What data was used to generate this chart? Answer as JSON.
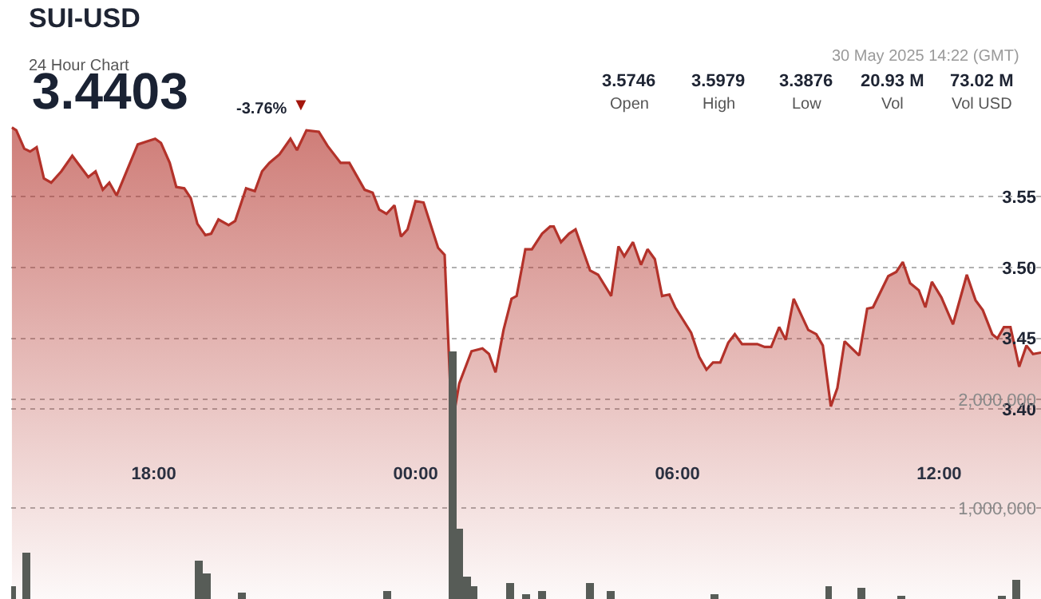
{
  "chart_data": {
    "type": "area",
    "title": "SUI-USD",
    "subtitle": "24 Hour Chart",
    "annotations": [
      "3.4403",
      "-3.76%",
      "▼",
      "30 May 2025 14:22 (GMT)",
      "3.5746",
      "Open",
      "3.5979",
      "High",
      "3.3876",
      "Low",
      "20.93 M",
      "Vol",
      "73.02 M",
      "Vol USD"
    ],
    "xlim": [
      "2025-05-29T14:44",
      "2025-05-30T14:20"
    ],
    "xticks": [
      {
        "value": "2025-05-29T18:00",
        "label": "18:00"
      },
      {
        "value": "2025-05-30T00:00",
        "label": "00:00"
      },
      {
        "value": "2025-05-30T06:00",
        "label": "06:00"
      },
      {
        "value": "2025-05-30T12:00",
        "label": "12:00"
      }
    ],
    "ylim": [
      3.266,
      3.689
    ],
    "yticks": [
      {
        "value": 3.4,
        "label": "3.40"
      },
      3.45,
      {
        "value": 3.5,
        "label": "3.50"
      },
      3.55
    ],
    "y2lim": [
      160000,
      5680000
    ],
    "y2ticks": [
      {
        "value": 1000000,
        "label": "1,000,000"
      },
      {
        "value": 2000000,
        "label": "2,000,000"
      }
    ],
    "grid": "y",
    "series": [
      {
        "color": "#b3322a",
        "x": [
          "2025-05-29T14:45",
          "2025-05-29T14:51",
          "2025-05-29T15:02",
          "2025-05-29T15:10",
          "2025-05-29T15:19",
          "2025-05-29T15:29",
          "2025-05-29T15:39",
          "2025-05-29T15:53",
          "2025-05-29T16:08",
          "2025-05-29T16:30",
          "2025-05-29T16:40",
          "2025-05-29T16:50",
          "2025-05-29T16:59",
          "2025-05-29T17:09",
          "2025-05-29T17:38",
          "2025-05-29T17:50",
          "2025-05-29T18:02",
          "2025-05-29T18:10",
          "2025-05-29T18:22",
          "2025-05-29T18:31",
          "2025-05-29T18:42",
          "2025-05-29T18:51",
          "2025-05-29T19:00",
          "2025-05-29T19:11",
          "2025-05-29T19:19",
          "2025-05-29T19:29",
          "2025-05-29T19:43",
          "2025-05-29T19:52",
          "2025-05-29T20:07",
          "2025-05-29T20:19",
          "2025-05-29T20:29",
          "2025-05-29T20:39",
          "2025-05-29T20:53",
          "2025-05-29T21:08",
          "2025-05-29T21:17",
          "2025-05-29T21:30",
          "2025-05-29T21:47",
          "2025-05-29T21:59",
          "2025-05-29T22:17",
          "2025-05-29T22:29",
          "2025-05-29T22:50",
          "2025-05-29T23:01",
          "2025-05-29T23:10",
          "2025-05-29T23:20",
          "2025-05-29T23:31",
          "2025-05-29T23:40",
          "2025-05-29T23:49",
          "2025-05-30T00:00",
          "2025-05-30T00:11",
          "2025-05-30T00:31",
          "2025-05-30T00:40",
          "2025-05-30T00:50",
          "2025-05-30T01:00",
          "2025-05-30T01:17",
          "2025-05-30T01:32",
          "2025-05-30T01:41",
          "2025-05-30T01:50",
          "2025-05-30T02:01",
          "2025-05-30T02:12",
          "2025-05-30T02:19",
          "2025-05-30T02:31",
          "2025-05-30T02:40",
          "2025-05-30T02:54",
          "2025-05-30T03:05",
          "2025-05-30T03:10",
          "2025-05-30T03:20",
          "2025-05-30T03:31",
          "2025-05-30T03:40",
          "2025-05-30T04:00",
          "2025-05-30T04:11",
          "2025-05-30T04:29",
          "2025-05-30T04:39",
          "2025-05-30T04:47",
          "2025-05-30T04:59",
          "2025-05-30T05:10",
          "2025-05-30T05:19",
          "2025-05-30T05:29",
          "2025-05-30T05:39",
          "2025-05-30T05:49",
          "2025-05-30T05:57",
          "2025-05-30T06:19",
          "2025-05-30T06:30",
          "2025-05-30T06:40",
          "2025-05-30T06:49",
          "2025-05-30T06:59",
          "2025-05-30T07:10",
          "2025-05-30T07:19",
          "2025-05-30T07:29",
          "2025-05-30T07:50",
          "2025-05-30T08:00",
          "2025-05-30T08:09",
          "2025-05-30T08:20",
          "2025-05-30T08:29",
          "2025-05-30T08:40",
          "2025-05-30T09:00",
          "2025-05-30T09:11",
          "2025-05-30T09:20",
          "2025-05-30T09:31",
          "2025-05-30T09:40",
          "2025-05-30T09:50",
          "2025-05-30T10:10",
          "2025-05-30T10:21",
          "2025-05-30T10:29",
          "2025-05-30T10:50",
          "2025-05-30T11:01",
          "2025-05-30T11:10",
          "2025-05-30T11:20",
          "2025-05-30T11:32",
          "2025-05-30T11:41",
          "2025-05-30T11:50",
          "2025-05-30T12:03",
          "2025-05-30T12:19",
          "2025-05-30T12:38",
          "2025-05-30T12:50",
          "2025-05-30T13:00",
          "2025-05-30T13:13",
          "2025-05-30T13:20",
          "2025-05-30T13:29",
          "2025-05-30T13:38",
          "2025-05-30T13:50",
          "2025-05-30T14:00",
          "2025-05-30T14:09",
          "2025-05-30T14:20"
        ],
        "values": [
          3.599,
          3.597,
          3.584,
          3.582,
          3.585,
          3.563,
          3.56,
          3.568,
          3.579,
          3.564,
          3.568,
          3.555,
          3.56,
          3.551,
          3.587,
          3.589,
          3.591,
          3.588,
          3.574,
          3.557,
          3.556,
          3.549,
          3.531,
          3.523,
          3.524,
          3.534,
          3.53,
          3.533,
          3.556,
          3.554,
          3.568,
          3.574,
          3.58,
          3.591,
          3.583,
          3.597,
          3.596,
          3.586,
          3.574,
          3.574,
          3.555,
          3.553,
          3.541,
          3.538,
          3.544,
          3.522,
          3.527,
          3.547,
          3.546,
          3.514,
          3.509,
          3.388,
          3.418,
          3.441,
          3.443,
          3.439,
          3.426,
          3.456,
          3.478,
          3.48,
          3.513,
          3.513,
          3.524,
          3.529,
          3.529,
          3.518,
          3.524,
          3.527,
          3.498,
          3.495,
          3.48,
          3.515,
          3.508,
          3.518,
          3.502,
          3.513,
          3.506,
          3.48,
          3.481,
          3.472,
          3.454,
          3.437,
          3.428,
          3.433,
          3.433,
          3.447,
          3.453,
          3.446,
          3.446,
          3.444,
          3.444,
          3.458,
          3.449,
          3.478,
          3.456,
          3.453,
          3.445,
          3.402,
          3.415,
          3.448,
          3.438,
          3.471,
          3.472,
          3.494,
          3.497,
          3.504,
          3.489,
          3.484,
          3.472,
          3.49,
          3.479,
          3.46,
          3.495,
          3.477,
          3.47,
          3.453,
          3.45,
          3.458,
          3.458,
          3.43,
          3.445,
          3.439,
          3.44
        ]
      },
      {
        "type": "bar",
        "axis": "y2",
        "color": "#575c57",
        "x": [
          "2025-05-29T14:46",
          "2025-05-29T15:04",
          "2025-05-29T19:02",
          "2025-05-29T19:13",
          "2025-05-29T20:02",
          "2025-05-29T23:21",
          "2025-05-30T00:51",
          "2025-05-30T01:00",
          "2025-05-30T01:11",
          "2025-05-30T01:20",
          "2025-05-30T02:10",
          "2025-05-30T02:32",
          "2025-05-30T02:54",
          "2025-05-30T04:00",
          "2025-05-30T04:29",
          "2025-05-30T06:52",
          "2025-05-30T09:28",
          "2025-05-30T10:13",
          "2025-05-30T11:08",
          "2025-05-30T13:27",
          "2025-05-30T13:46"
        ],
        "values": [
          280000,
          580000,
          510000,
          390000,
          220000,
          230000,
          2440000,
          810000,
          360000,
          280000,
          300000,
          210000,
          240000,
          310000,
          240000,
          200000,
          280000,
          260000,
          190000,
          190000,
          330000
        ]
      }
    ]
  }
}
